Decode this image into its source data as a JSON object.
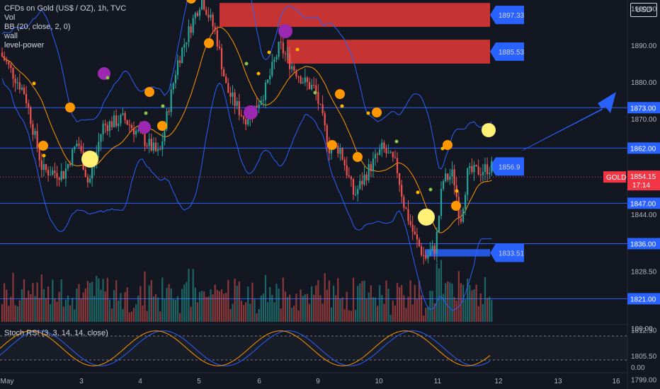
{
  "legend": {
    "symbol_line": "CFDs on Gold (US$ / OZ), 1h, TVC",
    "vol": "Vol",
    "bb": "BB (20, close, 2, 0)",
    "wall": "wall",
    "level_power": "level-power"
  },
  "rsi_label": "Stoch RSI (3, 3, 14, 14, close)",
  "currency_button": "USD",
  "colors": {
    "background": "#131722",
    "up": "#26a69a",
    "down": "#ef5350",
    "level_line": "#2962ff",
    "bb_band": "#2962ff",
    "bb_basis": "#ff9800",
    "wall_box": "#e53935",
    "arrow": "#2962ff",
    "price_tag": "#f23645"
  },
  "chart_data": {
    "type": "candlestick",
    "symbol": "GOLD",
    "interval": "1h",
    "ylim": [
      1796,
      1902
    ],
    "y_ticks": [
      1799.0,
      1805.5,
      1812.5,
      1828.5,
      1844.0,
      1870.0,
      1880.0,
      1890.0,
      1900.0
    ],
    "x_ticks": [
      "May",
      "3",
      "4",
      "5",
      "6",
      "9",
      "10",
      "11",
      "12",
      "13",
      "16"
    ],
    "horizontal_levels": [
      1873.0,
      1862.0,
      1847.0,
      1836.0,
      1821.0
    ],
    "current_price": {
      "label": "GOLD",
      "value": "1854.15",
      "countdown": "17:14"
    },
    "walls": [
      {
        "label": "1897.33",
        "top": 1901.5,
        "bottom": 1895.0,
        "color": "red"
      },
      {
        "label": "1885.53",
        "top": 1891.5,
        "bottom": 1885.0,
        "color": "red"
      },
      {
        "label": "1856.9",
        "top": 1859.0,
        "bottom": 1855.0,
        "color": "blue"
      },
      {
        "label": "1833.51",
        "top": 1834.5,
        "bottom": 1832.5,
        "color": "blue"
      }
    ],
    "stoch_rsi": {
      "ylim": [
        0,
        100
      ],
      "ticks": [
        "100.00",
        "0.00"
      ],
      "upper_band": 80,
      "lower_band": 20
    }
  }
}
